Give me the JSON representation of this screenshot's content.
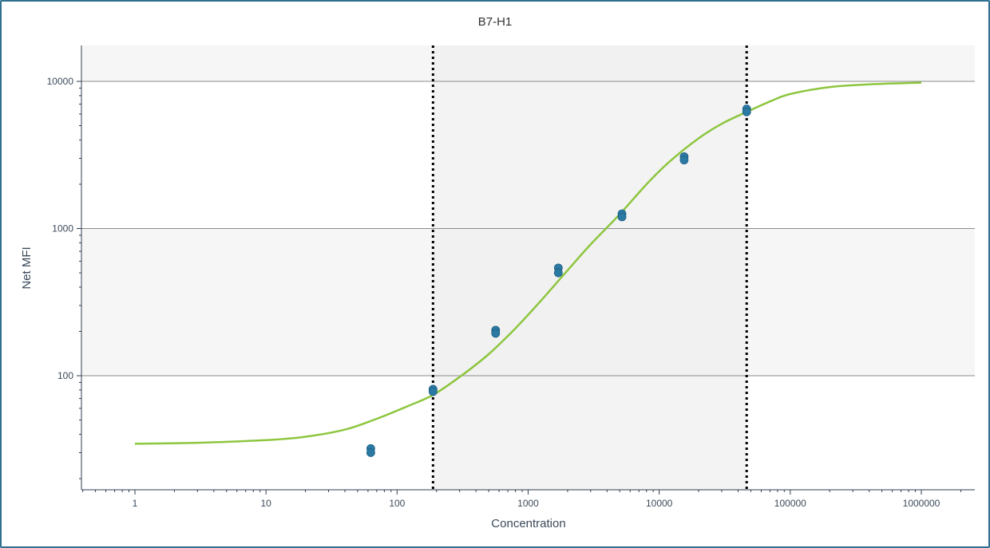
{
  "chart_data": {
    "type": "scatter",
    "title": "B7-H1",
    "xlabel": "Concentration",
    "ylabel": "Net MFI",
    "x_scale": "log",
    "y_scale": "log",
    "xlim": [
      0.4,
      3000000
    ],
    "ylim": [
      19,
      17000
    ],
    "x_ticks": [
      1,
      10,
      100,
      1000,
      10000,
      100000,
      1000000
    ],
    "x_tick_labels": [
      "1",
      "10",
      "100",
      "1000",
      "10000",
      "100000",
      "1000000"
    ],
    "y_ticks": [
      100,
      1000,
      10000
    ],
    "y_tick_labels": [
      "100",
      "1000",
      "10000"
    ],
    "grid": "horizontal",
    "series": [
      {
        "type": "scatter",
        "color": "#2a7aa3",
        "points": [
          {
            "x": 63,
            "y": 32
          },
          {
            "x": 63,
            "y": 30
          },
          {
            "x": 188,
            "y": 81
          },
          {
            "x": 188,
            "y": 78
          },
          {
            "x": 565,
            "y": 204
          },
          {
            "x": 565,
            "y": 194
          },
          {
            "x": 1700,
            "y": 540
          },
          {
            "x": 1700,
            "y": 500
          },
          {
            "x": 5200,
            "y": 1260
          },
          {
            "x": 5200,
            "y": 1200
          },
          {
            "x": 15500,
            "y": 3080
          },
          {
            "x": 15500,
            "y": 2920
          },
          {
            "x": 46500,
            "y": 6500
          },
          {
            "x": 46500,
            "y": 6200
          }
        ]
      },
      {
        "type": "line",
        "color": "#8dc63f",
        "curve": "5PL fit",
        "points": [
          {
            "x": 1,
            "y": 34.5
          },
          {
            "x": 3,
            "y": 35
          },
          {
            "x": 10,
            "y": 36.5
          },
          {
            "x": 20,
            "y": 38.5
          },
          {
            "x": 40,
            "y": 43
          },
          {
            "x": 70,
            "y": 51
          },
          {
            "x": 120,
            "y": 62
          },
          {
            "x": 188,
            "y": 74
          },
          {
            "x": 300,
            "y": 98
          },
          {
            "x": 500,
            "y": 140
          },
          {
            "x": 800,
            "y": 210
          },
          {
            "x": 1200,
            "y": 310
          },
          {
            "x": 2000,
            "y": 520
          },
          {
            "x": 3000,
            "y": 780
          },
          {
            "x": 5000,
            "y": 1250
          },
          {
            "x": 8000,
            "y": 2000
          },
          {
            "x": 12000,
            "y": 2850
          },
          {
            "x": 20000,
            "y": 4100
          },
          {
            "x": 30000,
            "y": 5150
          },
          {
            "x": 46500,
            "y": 6200
          },
          {
            "x": 70000,
            "y": 7300
          },
          {
            "x": 100000,
            "y": 8200
          },
          {
            "x": 200000,
            "y": 9150
          },
          {
            "x": 400000,
            "y": 9550
          },
          {
            "x": 1000000,
            "y": 9800
          }
        ]
      }
    ],
    "vertical_lines": [
      {
        "x": 188,
        "style": "dotted",
        "color": "#000000"
      },
      {
        "x": 46500,
        "style": "dotted",
        "color": "#000000"
      }
    ],
    "shaded_region": {
      "x_range": [
        188,
        46500
      ],
      "color": "#efefef"
    },
    "band_color": "#f6f6f6"
  }
}
